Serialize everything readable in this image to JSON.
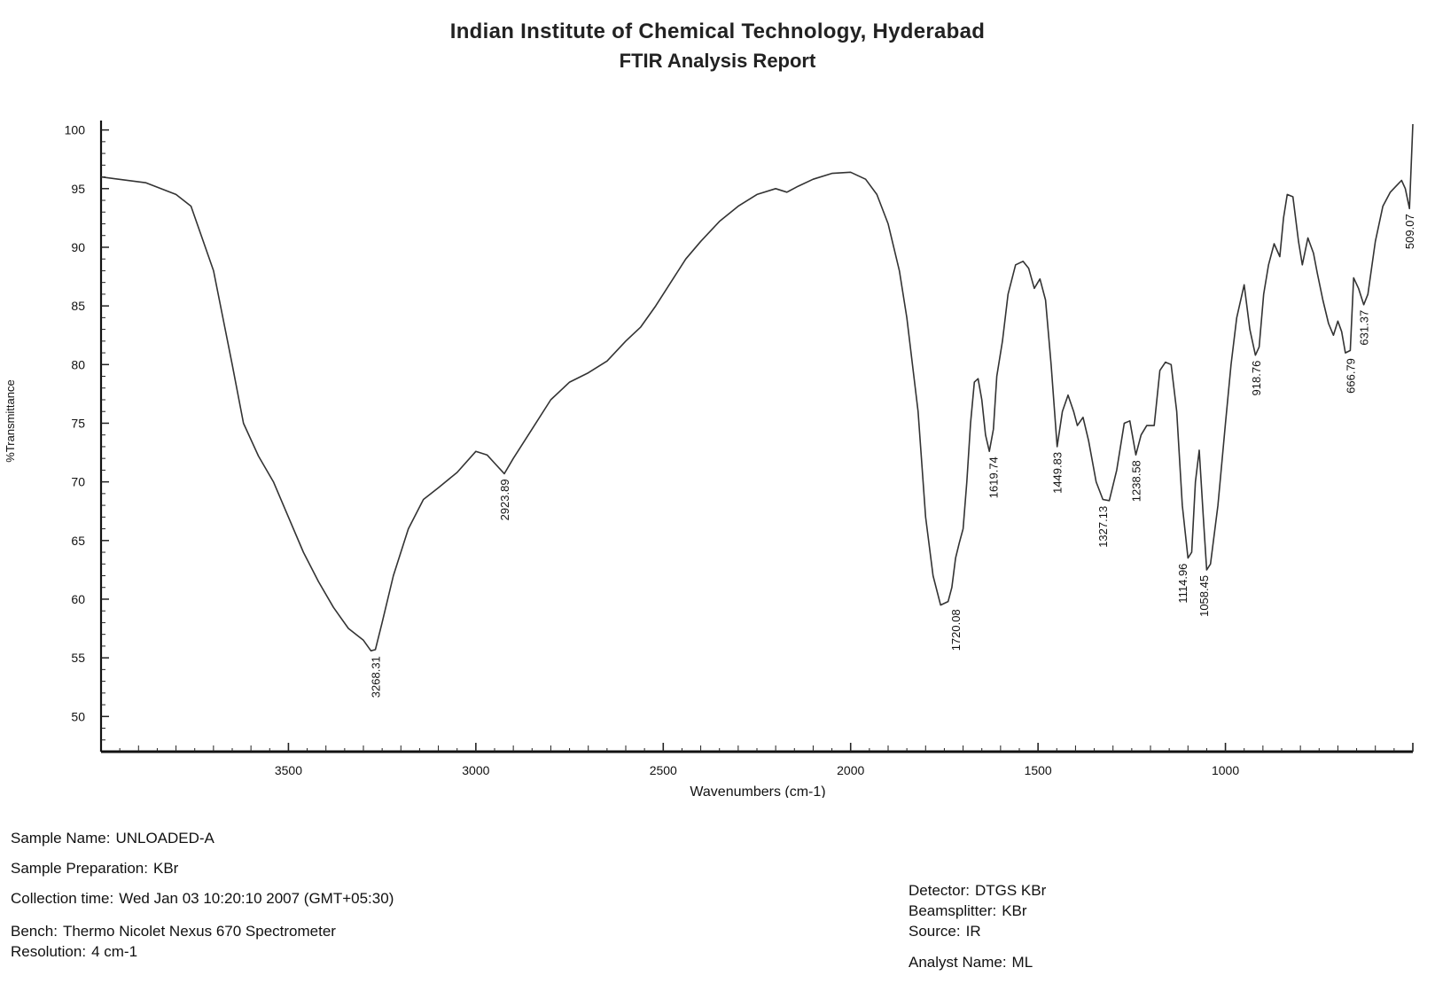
{
  "header": {
    "title": "Indian Institute of Chemical Technology, Hyderabad",
    "subtitle": "FTIR Analysis Report"
  },
  "chart_data": {
    "type": "line",
    "title": "",
    "xlabel": "Wavenumbers (cm-1)",
    "ylabel": "%Transmittance",
    "xlim": [
      4000,
      500
    ],
    "ylim": [
      47,
      100.5
    ],
    "x_reversed": true,
    "x_ticks": [
      3500,
      3000,
      2500,
      2000,
      1500,
      1000
    ],
    "x_tick_labels": [
      "3500",
      "3000",
      "2500",
      "2000",
      "1500",
      "1000"
    ],
    "y_ticks": [
      50,
      55,
      60,
      65,
      70,
      75,
      80,
      85,
      90,
      95,
      100
    ],
    "y_tick_labels": [
      "50",
      "55",
      "60",
      "65",
      "70",
      "75",
      "80",
      "85",
      "90",
      "95",
      "100"
    ],
    "grid": false,
    "series": [
      {
        "x": [
          4000,
          3880,
          3800,
          3760,
          3700,
          3650,
          3620,
          3580,
          3540,
          3500,
          3460,
          3420,
          3380,
          3340,
          3300,
          3280,
          3268,
          3250,
          3220,
          3180,
          3140,
          3100,
          3050,
          3000,
          2970,
          2950,
          2924,
          2900,
          2850,
          2800,
          2750,
          2700,
          2650,
          2600,
          2560,
          2520,
          2480,
          2440,
          2400,
          2350,
          2300,
          2250,
          2200,
          2170,
          2140,
          2100,
          2050,
          2000,
          1960,
          1930,
          1900,
          1870,
          1850,
          1820,
          1800,
          1780,
          1760,
          1740,
          1730,
          1720,
          1710,
          1700,
          1690,
          1680,
          1670,
          1660,
          1650,
          1640,
          1630,
          1619,
          1610,
          1595,
          1580,
          1560,
          1540,
          1525,
          1510,
          1495,
          1480,
          1465,
          1449,
          1435,
          1420,
          1405,
          1395,
          1380,
          1365,
          1345,
          1327,
          1310,
          1290,
          1270,
          1255,
          1239,
          1225,
          1210,
          1190,
          1175,
          1160,
          1145,
          1130,
          1115,
          1100,
          1090,
          1080,
          1070,
          1059,
          1050,
          1040,
          1020,
          1000,
          985,
          970,
          950,
          935,
          920,
          910,
          898,
          885,
          870,
          855,
          845,
          835,
          820,
          805,
          795,
          780,
          765,
          755,
          740,
          725,
          712,
          700,
          690,
          680,
          667,
          658,
          645,
          631,
          620,
          600,
          580,
          560,
          545,
          530,
          520,
          509,
          500
        ],
        "y": [
          96.0,
          95.5,
          94.5,
          93.5,
          88,
          80,
          75,
          72.2,
          70,
          67,
          64,
          61.5,
          59.3,
          57.5,
          56.5,
          55.6,
          55.7,
          58,
          62,
          66,
          68.5,
          69.5,
          70.8,
          72.6,
          72.3,
          71.6,
          70.7,
          72,
          74.5,
          77,
          78.5,
          79.3,
          80.3,
          82,
          83.2,
          85,
          87,
          89,
          90.5,
          92.2,
          93.5,
          94.5,
          95.0,
          94.7,
          95.2,
          95.8,
          96.3,
          96.4,
          95.8,
          94.5,
          92,
          88,
          84,
          76,
          67,
          62,
          59.5,
          59.8,
          61,
          63.5,
          64.8,
          66,
          70,
          75,
          78.5,
          78.8,
          77,
          74,
          72.6,
          74.5,
          79,
          82,
          86,
          88.5,
          88.8,
          88.2,
          86.5,
          87.3,
          85.5,
          80,
          73,
          76,
          77.4,
          76,
          74.8,
          75.5,
          73.5,
          70,
          68.5,
          68.4,
          71,
          75,
          75.2,
          72.3,
          74,
          74.8,
          74.8,
          79.5,
          80.2,
          80.0,
          76,
          68,
          63.5,
          64,
          70,
          72.7,
          67,
          62.5,
          63,
          68,
          75,
          80,
          84,
          86.8,
          83,
          80.8,
          81.5,
          86,
          88.5,
          90.3,
          89.2,
          92.5,
          94.5,
          94.3,
          90.5,
          88.5,
          90.8,
          89.5,
          87.8,
          85.5,
          83.5,
          82.5,
          83.7,
          82.8,
          81,
          81.2,
          87.4,
          86.5,
          85.1,
          86,
          90.5,
          93.5,
          94.7,
          95.2,
          95.7,
          95.0,
          93.3,
          100.5
        ]
      }
    ],
    "annotations": [
      {
        "label": "3268.31",
        "x": 3268.31,
        "y": 55.6
      },
      {
        "label": "2923.89",
        "x": 2923.89,
        "y": 70.7
      },
      {
        "label": "1720.08",
        "x": 1720.08,
        "y": 59.6
      },
      {
        "label": "1619.74",
        "x": 1619.74,
        "y": 72.6
      },
      {
        "label": "1449.83",
        "x": 1449.83,
        "y": 73.0
      },
      {
        "label": "1327.13",
        "x": 1327.13,
        "y": 68.4
      },
      {
        "label": "1238.58",
        "x": 1238.58,
        "y": 72.3
      },
      {
        "label": "1114.96",
        "x": 1114.96,
        "y": 63.5
      },
      {
        "label": "1058.45",
        "x": 1058.45,
        "y": 62.5
      },
      {
        "label": "918.76",
        "x": 918.76,
        "y": 80.8
      },
      {
        "label": "666.79",
        "x": 666.79,
        "y": 81.0
      },
      {
        "label": "631.37",
        "x": 631.37,
        "y": 85.1
      },
      {
        "label": "509.07",
        "x": 509.07,
        "y": 93.3
      }
    ]
  },
  "sample_info": {
    "sample_name_label": "Sample Name:",
    "sample_name_value": "UNLOADED-A",
    "sample_prep_label": "Sample Preparation:",
    "sample_prep_value": "KBr",
    "collection_label": "Collection time:",
    "collection_value": "Wed Jan 03 10:20:10 2007 (GMT+05:30)",
    "bench_label": "Bench:",
    "bench_value": "Thermo Nicolet Nexus 670 Spectrometer",
    "resolution_label": "Resolution:",
    "resolution_value": "4 cm-1"
  },
  "instrument_info": {
    "detector_label": "Detector:",
    "detector_value": "DTGS KBr",
    "beamsplitter_label": "Beamsplitter:",
    "beamsplitter_value": "KBr",
    "source_label": "Source:",
    "source_value": "IR",
    "analyst_label": "Analyst Name:",
    "analyst_value": "ML"
  }
}
